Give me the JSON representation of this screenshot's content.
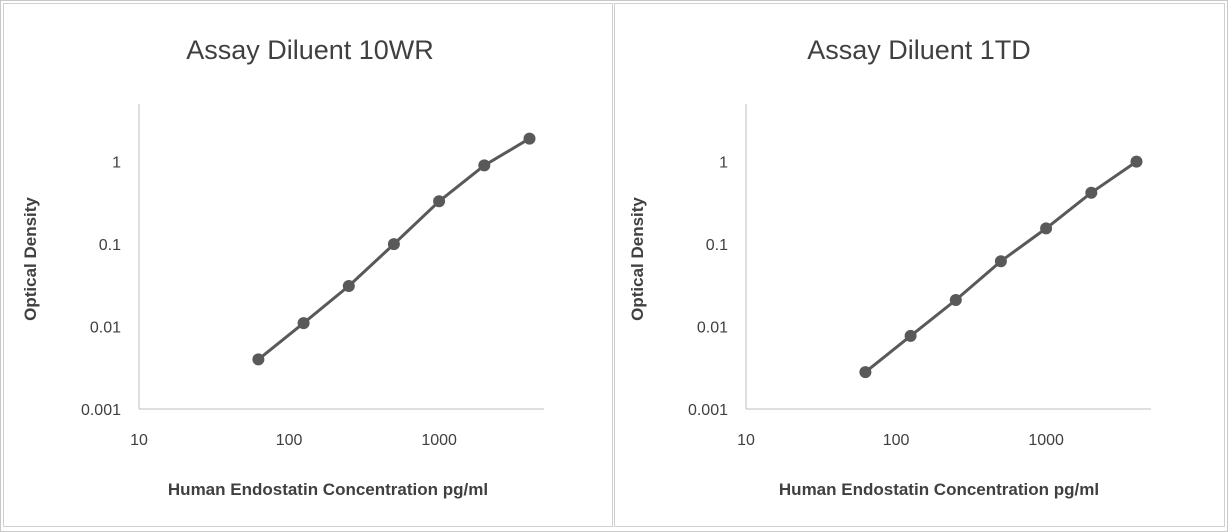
{
  "chart_data": [
    {
      "type": "line",
      "title": "Assay Diluent 10WR",
      "xlabel": "Human Endostatin  Concentration pg/ml",
      "ylabel": "Optical Density",
      "xscale": "log",
      "yscale": "log",
      "xlim": [
        10,
        5000
      ],
      "ylim": [
        0.001,
        5
      ],
      "xticks": [
        "10",
        "100",
        "1000"
      ],
      "yticks": [
        "0.001",
        "0.01",
        "0.1",
        "1"
      ],
      "grid": false,
      "series_color": "#595959",
      "x": [
        62.5,
        125,
        250,
        500,
        1000,
        2000,
        4000
      ],
      "y": [
        0.004,
        0.011,
        0.031,
        0.1,
        0.33,
        0.9,
        1.9
      ]
    },
    {
      "type": "line",
      "title": "Assay Diluent 1TD",
      "xlabel": "Human Endostatin  Concentration pg/ml",
      "ylabel": "Optical Density",
      "xscale": "log",
      "yscale": "log",
      "xlim": [
        10,
        5000
      ],
      "ylim": [
        0.001,
        5
      ],
      "xticks": [
        "10",
        "100",
        "1000"
      ],
      "yticks": [
        "0.001",
        "0.01",
        "0.1",
        "1"
      ],
      "grid": false,
      "series_color": "#595959",
      "x": [
        62.5,
        125,
        250,
        500,
        1000,
        2000,
        4000
      ],
      "y": [
        0.0028,
        0.0077,
        0.021,
        0.062,
        0.155,
        0.42,
        1.0
      ]
    }
  ]
}
